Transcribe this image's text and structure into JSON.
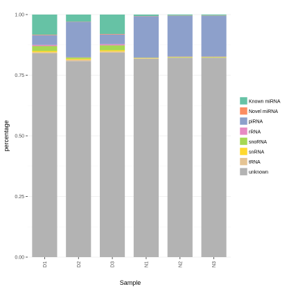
{
  "chart_data": {
    "type": "bar",
    "stacked": true,
    "title": "",
    "xlabel": "Sample",
    "ylabel": "percentage",
    "ylim": [
      0,
      1
    ],
    "yticks": [
      "0.00",
      "0.25",
      "0.50",
      "0.75",
      "1.00"
    ],
    "categories": [
      "D1",
      "D2",
      "D3",
      "N1",
      "N2",
      "N3"
    ],
    "grid": true,
    "legend_position": "right",
    "series": [
      {
        "name": "unknown",
        "color": "#b3b3b3",
        "values": [
          0.84,
          0.808,
          0.843,
          0.818,
          0.822,
          0.822
        ]
      },
      {
        "name": "tRNA",
        "color": "#e5c494",
        "values": [
          0.005,
          0.006,
          0.005,
          0.001,
          0.001,
          0.001
        ]
      },
      {
        "name": "snRNA",
        "color": "#ffd92f",
        "values": [
          0.005,
          0.004,
          0.005,
          0.001,
          0.001,
          0.001
        ]
      },
      {
        "name": "snoRNA",
        "color": "#a6d854",
        "values": [
          0.02,
          0.005,
          0.02,
          0.002,
          0.002,
          0.002
        ]
      },
      {
        "name": "rRNA",
        "color": "#e78ac3",
        "values": [
          0.005,
          0.001,
          0.005,
          0.001,
          0.001,
          0.001
        ]
      },
      {
        "name": "piRNA",
        "color": "#8da0cb",
        "values": [
          0.04,
          0.146,
          0.04,
          0.17,
          0.168,
          0.168
        ]
      },
      {
        "name": "Novel miRNA",
        "color": "#fc8d62",
        "values": [
          0.002,
          0.001,
          0.002,
          0.001,
          0.001,
          0.001
        ]
      },
      {
        "name": "Known miRNA",
        "color": "#66c2a5",
        "values": [
          0.083,
          0.029,
          0.08,
          0.006,
          0.004,
          0.004
        ]
      }
    ],
    "legend_order": [
      "Known miRNA",
      "Novel miRNA",
      "piRNA",
      "rRNA",
      "snoRNA",
      "snRNA",
      "tRNA",
      "unknown"
    ]
  }
}
